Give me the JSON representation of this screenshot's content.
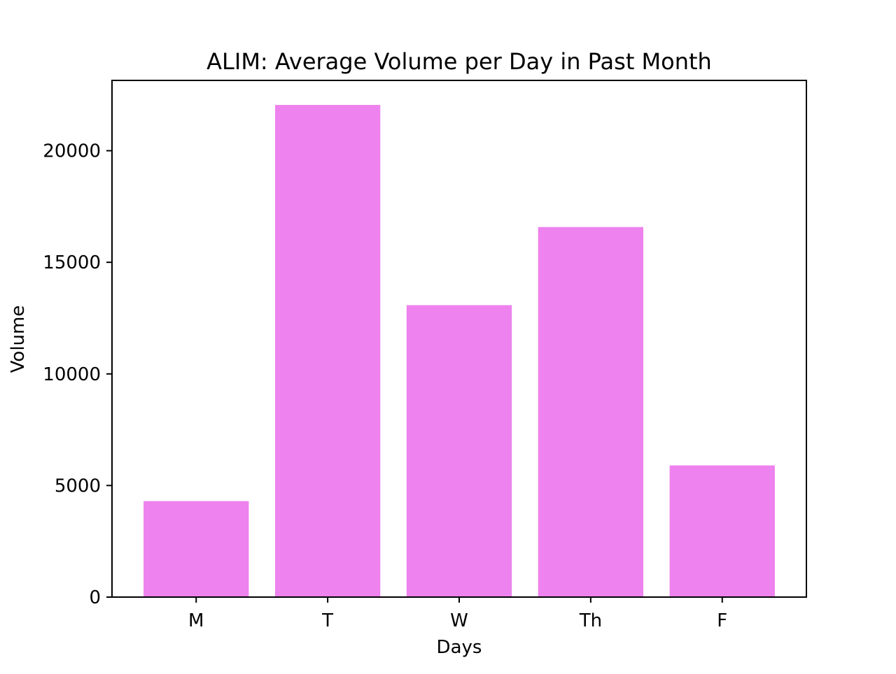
{
  "chart_data": {
    "type": "bar",
    "title": "ALIM: Average Volume per Day in Past Month",
    "xlabel": "Days",
    "ylabel": "Volume",
    "categories": [
      "M",
      "T",
      "W",
      "Th",
      "F"
    ],
    "values": [
      4300,
      22050,
      13080,
      16580,
      5900
    ],
    "ylim": [
      0,
      23150
    ],
    "yticks": [
      0,
      5000,
      10000,
      15000,
      20000
    ],
    "grid": false,
    "bar_color": "#ee82ee"
  }
}
